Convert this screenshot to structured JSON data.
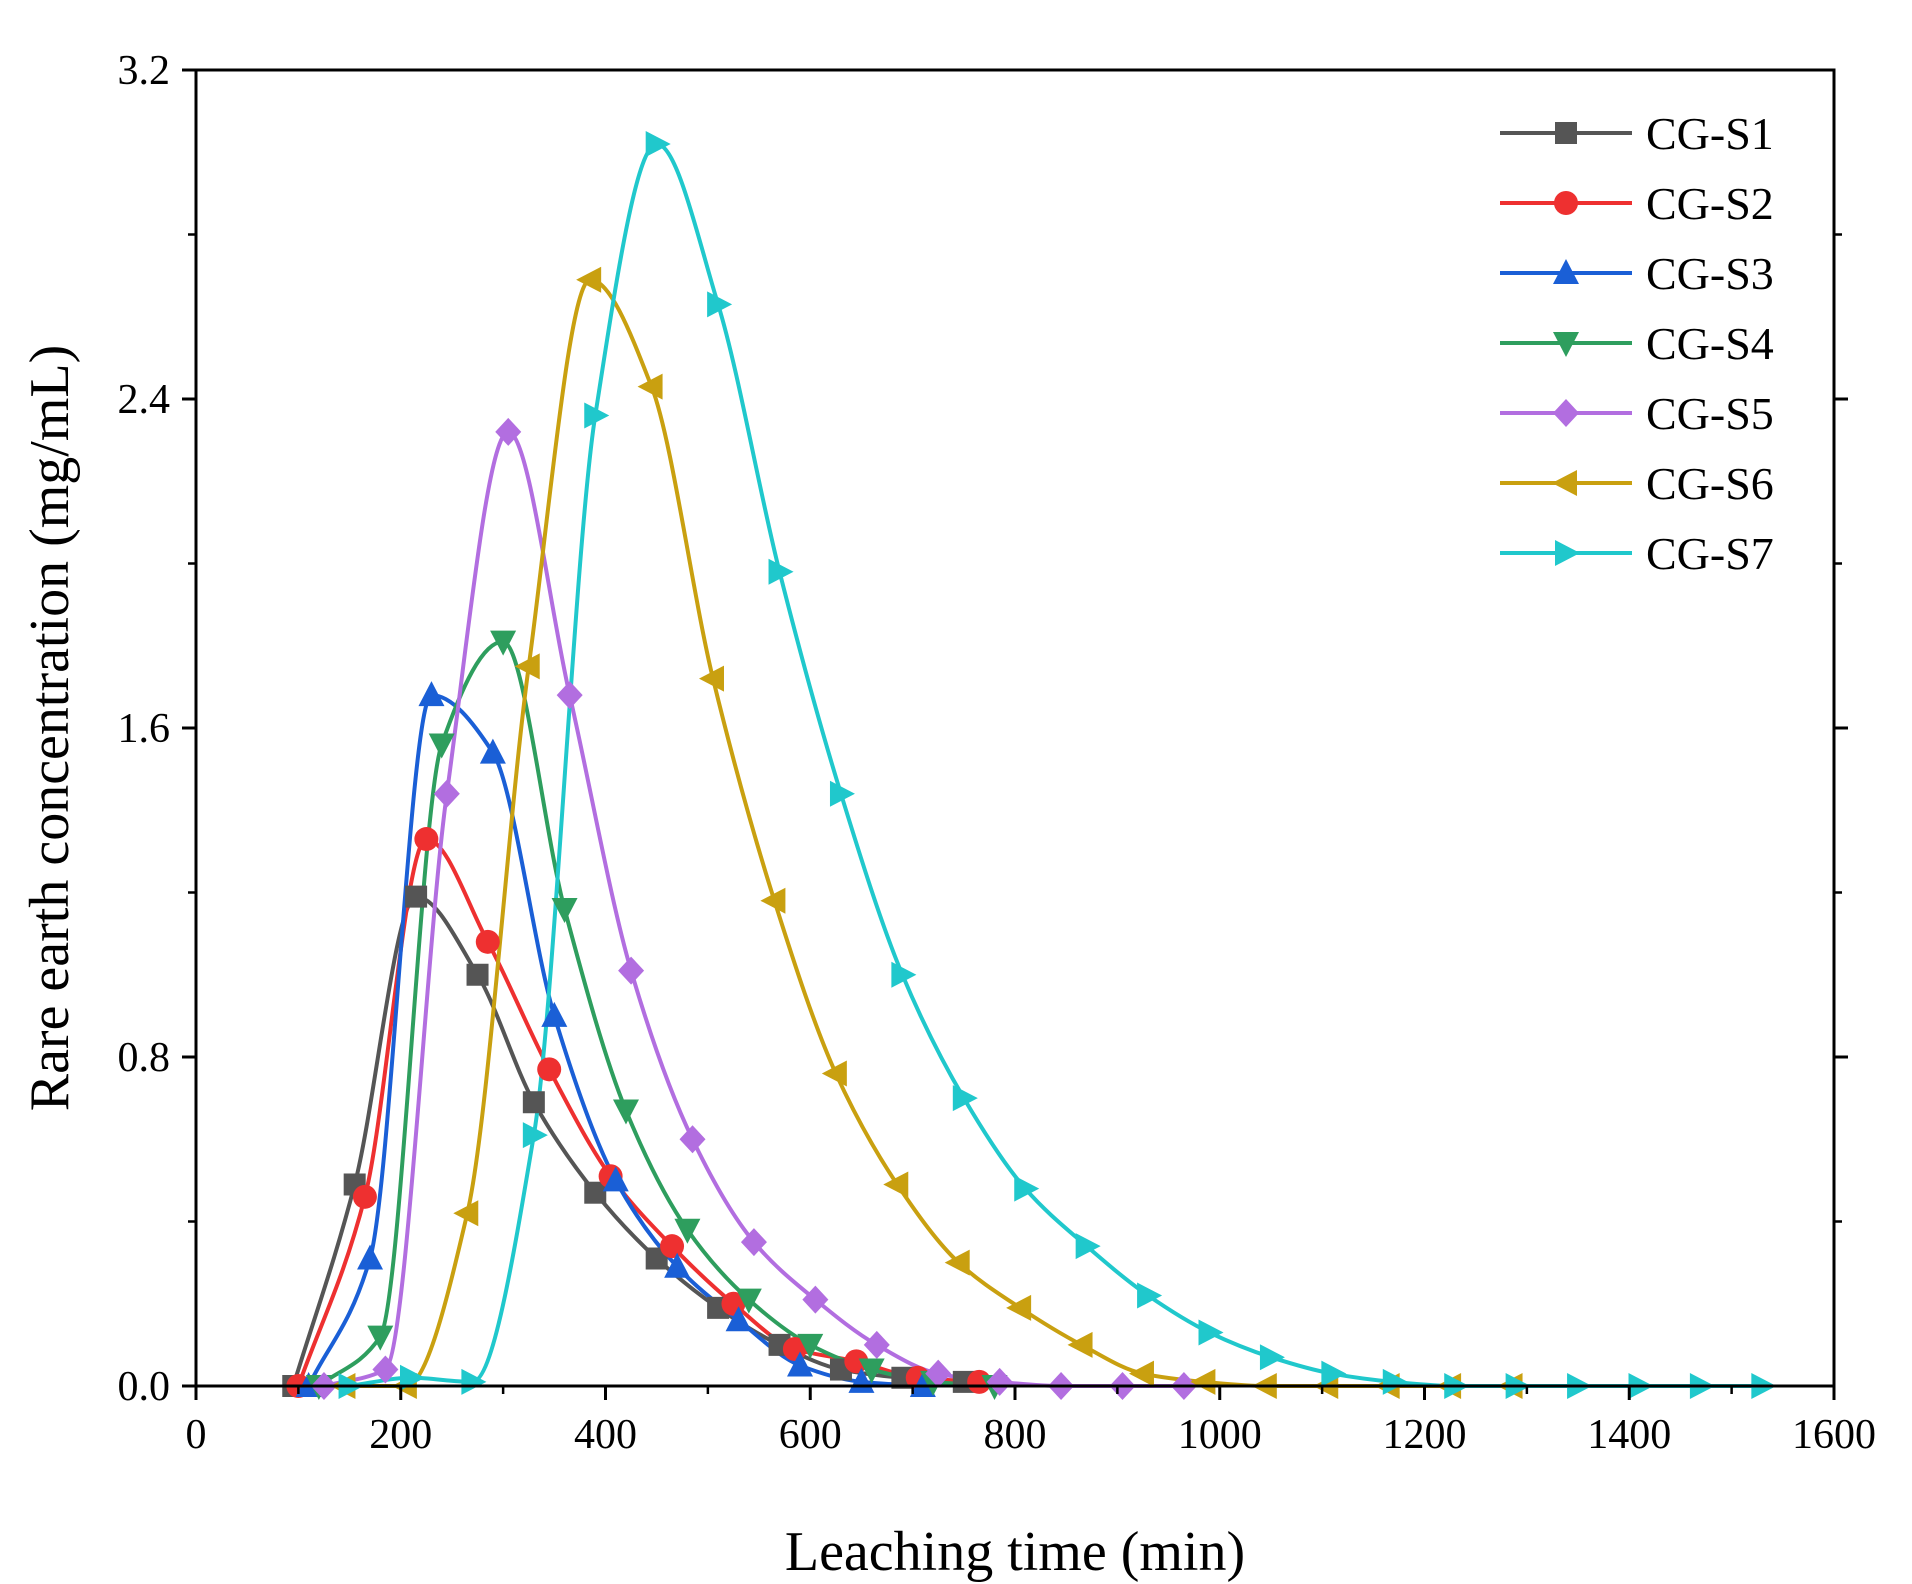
{
  "chart_data": {
    "type": "line",
    "title": "",
    "xlabel": "Leaching time (min)",
    "ylabel": "Rare earth concentration (mg/mL)",
    "xlim": [
      0,
      1600
    ],
    "ylim": [
      0,
      3.2
    ],
    "xticks": [
      0,
      200,
      400,
      600,
      800,
      1000,
      1200,
      1400,
      1600
    ],
    "xtick_labels": [
      "0",
      "200",
      "400",
      "600",
      "800",
      "1000",
      "1200",
      "1400",
      "1600"
    ],
    "yticks": [
      0,
      0.8,
      1.6,
      2.4,
      3.2
    ],
    "ytick_labels": [
      "0.0",
      "0.8",
      "1.6",
      "2.4",
      "3.2"
    ],
    "grid": false,
    "legend_position": "top-right",
    "series": [
      {
        "name": "CG-S1",
        "color": "#555555",
        "marker": "square",
        "x": [
          95,
          155,
          215,
          275,
          330,
          390,
          450,
          510,
          570,
          630,
          690,
          750
        ],
        "y": [
          0.0,
          0.49,
          1.19,
          1.0,
          0.69,
          0.47,
          0.31,
          0.19,
          0.1,
          0.04,
          0.02,
          0.01
        ]
      },
      {
        "name": "CG-S2",
        "color": "#ee3030",
        "marker": "circle",
        "x": [
          100,
          165,
          225,
          285,
          345,
          405,
          465,
          525,
          585,
          645,
          705,
          765
        ],
        "y": [
          0.0,
          0.46,
          1.33,
          1.08,
          0.77,
          0.51,
          0.34,
          0.2,
          0.09,
          0.06,
          0.02,
          0.01
        ]
      },
      {
        "name": "CG-S3",
        "color": "#1a5fd6",
        "marker": "triangle-up",
        "x": [
          110,
          170,
          230,
          290,
          350,
          410,
          470,
          530,
          590,
          650,
          710
        ],
        "y": [
          0.0,
          0.31,
          1.68,
          1.54,
          0.9,
          0.5,
          0.29,
          0.16,
          0.05,
          0.01,
          0.0
        ]
      },
      {
        "name": "CG-S4",
        "color": "#2e9e5e",
        "marker": "triangle-down",
        "x": [
          120,
          180,
          240,
          300,
          360,
          420,
          480,
          540,
          600,
          660,
          720,
          780
        ],
        "y": [
          0.0,
          0.12,
          1.56,
          1.81,
          1.16,
          0.67,
          0.38,
          0.21,
          0.1,
          0.04,
          0.01,
          0.0
        ]
      },
      {
        "name": "CG-S5",
        "color": "#b26ee0",
        "marker": "diamond",
        "x": [
          125,
          185,
          245,
          305,
          365,
          425,
          485,
          545,
          605,
          665,
          725,
          785,
          845,
          905,
          965
        ],
        "y": [
          0.0,
          0.04,
          1.44,
          2.32,
          1.68,
          1.01,
          0.6,
          0.35,
          0.21,
          0.1,
          0.03,
          0.01,
          0.0,
          0.0,
          0.0
        ]
      },
      {
        "name": "CG-S6",
        "color": "#c9a010",
        "marker": "triangle-left",
        "x": [
          145,
          205,
          265,
          325,
          385,
          445,
          505,
          565,
          625,
          685,
          745,
          805,
          865,
          925,
          985,
          1045,
          1105,
          1165,
          1225,
          1285
        ],
        "y": [
          0.0,
          0.0,
          0.42,
          1.75,
          2.69,
          2.43,
          1.72,
          1.18,
          0.76,
          0.49,
          0.3,
          0.19,
          0.1,
          0.03,
          0.01,
          0.0,
          0.0,
          0.0,
          0.0,
          0.0
        ]
      },
      {
        "name": "CG-S7",
        "color": "#20c8cc",
        "marker": "triangle-right",
        "x": [
          150,
          210,
          270,
          330,
          390,
          450,
          510,
          570,
          630,
          690,
          750,
          810,
          870,
          930,
          990,
          1050,
          1110,
          1170,
          1230,
          1290,
          1350,
          1410,
          1470,
          1530
        ],
        "y": [
          0.0,
          0.02,
          0.01,
          0.61,
          2.36,
          3.02,
          2.63,
          1.98,
          1.44,
          1.0,
          0.7,
          0.48,
          0.34,
          0.22,
          0.13,
          0.07,
          0.03,
          0.01,
          0.0,
          0.0,
          0.0,
          0.0,
          0.0,
          0.0
        ]
      }
    ]
  }
}
